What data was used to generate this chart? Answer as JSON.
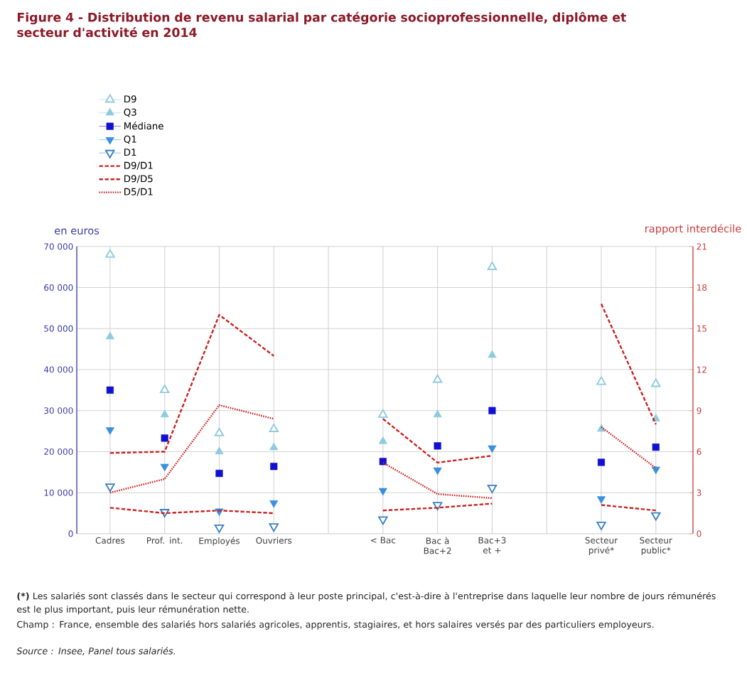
{
  "chart_data": {
    "type": "scatter",
    "title": "Figure 4 - Distribution de revenu salarial par catégorie socioprofessionnelle, diplôme et secteur d'activité en 2014",
    "ylabel": "en euros",
    "y2label": "rapport interdécile",
    "categories": [
      "Cadres",
      "Prof. int.",
      "Employés",
      "Ouvriers",
      null,
      "< Bac",
      "Bac à Bac+2",
      "Bac+3 et +",
      null,
      "Secteur privé*",
      "Secteur public*"
    ],
    "series": [
      {
        "name": "D9",
        "marker": "triangle-open",
        "color": "#8ecae0",
        "values": [
          68000,
          35000,
          24500,
          25500,
          null,
          29000,
          37500,
          65000,
          null,
          37000,
          36500
        ]
      },
      {
        "name": "Q3",
        "marker": "triangle",
        "color": "#8ecae0",
        "values": [
          48000,
          29000,
          20000,
          21000,
          null,
          22500,
          29000,
          43500,
          null,
          25500,
          28000
        ]
      },
      {
        "name": "Médiane",
        "marker": "square",
        "color": "#1010d0",
        "values": [
          35000,
          23300,
          14700,
          16400,
          null,
          17600,
          21400,
          30000,
          null,
          17400,
          21100
        ]
      },
      {
        "name": "Q1",
        "marker": "triangle-down",
        "color": "#3a8fdf",
        "values": [
          25300,
          16400,
          5500,
          7500,
          null,
          10500,
          15500,
          20900,
          null,
          8500,
          15700
        ]
      },
      {
        "name": "D1",
        "marker": "triangle-down-open",
        "color": "#3a80c0",
        "values": [
          11500,
          5300,
          1500,
          1800,
          null,
          3500,
          7000,
          11200,
          null,
          2200,
          4500
        ]
      },
      {
        "name": "D9/D1",
        "type": "line",
        "axis": "y2",
        "line_style": "dashed",
        "color": "#cc2222",
        "values": [
          5.9,
          6.0,
          16,
          13,
          null,
          8.4,
          5.2,
          5.7,
          null,
          16.8,
          8.0
        ]
      },
      {
        "name": "D9/D5",
        "type": "line",
        "axis": "y2",
        "line_style": "dashed",
        "color": "#cc2222",
        "values": [
          1.9,
          1.5,
          1.7,
          1.5,
          null,
          1.7,
          1.9,
          2.2,
          null,
          2.1,
          1.7
        ]
      },
      {
        "name": "D5/D1",
        "type": "line",
        "axis": "y2",
        "line_style": "dotted",
        "color": "#cc2222",
        "values": [
          3.0,
          4.0,
          9.4,
          8.4,
          null,
          5.2,
          2.9,
          2.6,
          null,
          7.8,
          4.8
        ]
      }
    ],
    "ylim": [
      0,
      70000
    ],
    "yticks": [
      0,
      {
        "value": 10000,
        "label": "10 000"
      },
      {
        "value": 20000,
        "label": "20 000"
      },
      {
        "value": 30000,
        "label": "30 000"
      },
      {
        "value": 40000,
        "label": "40 000"
      },
      {
        "value": 50000,
        "label": "50 000"
      },
      {
        "value": 60000,
        "label": "60 000"
      },
      {
        "value": 70000,
        "label": "70 000"
      }
    ],
    "y2lim": [
      0,
      21
    ],
    "y2ticks": [
      0,
      3,
      6,
      9,
      12,
      15,
      18,
      21
    ],
    "grid": true,
    "legend": "top left",
    "annotations": [
      "**(*)** Les salariés sont classés dans le secteur qui correspond à leur poste principal, c'est-à-dire à l'entreprise dans laquelle leur nombre de jours rémunérés est le plus important, puis leur rémunération nette.",
      "Champ : France, ensemble des salariés hors salariés agricoles, apprentis, stagiaires, et hors salaires versés par des particuliers employeurs.",
      "Source : Insee, Panel tous salariés."
    ]
  }
}
